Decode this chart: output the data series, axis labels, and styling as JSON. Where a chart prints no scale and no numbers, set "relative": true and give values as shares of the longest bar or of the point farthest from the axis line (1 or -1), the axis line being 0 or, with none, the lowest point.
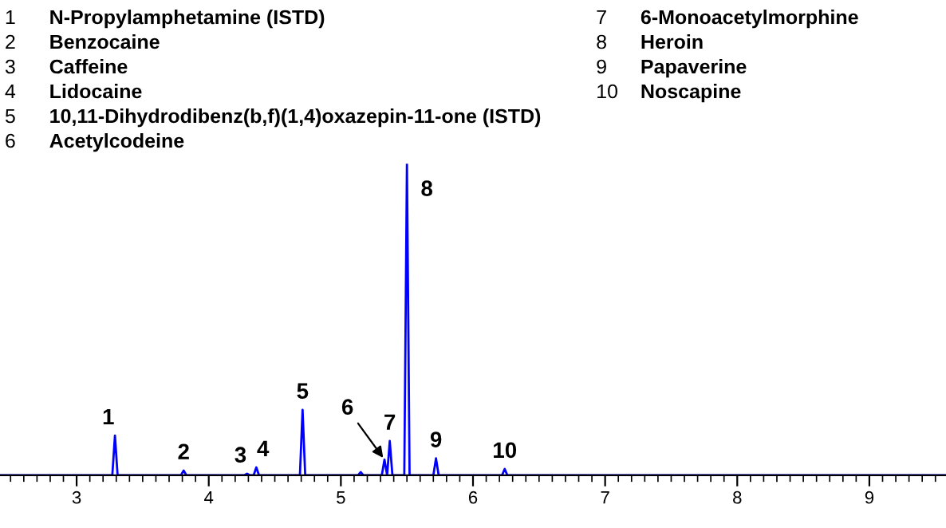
{
  "chart_data": {
    "type": "line",
    "relative": true,
    "marker": "none",
    "line_style": "solid",
    "grid": false,
    "legend": false,
    "x": [
      2.42,
      3.27,
      3.29,
      3.31,
      3.79,
      3.81,
      3.83,
      4.27,
      4.29,
      4.31,
      4.34,
      4.36,
      4.38,
      4.69,
      4.71,
      4.73,
      5.13,
      5.15,
      5.17,
      5.31,
      5.33,
      5.35,
      5.37,
      5.39,
      5.48,
      5.5,
      5.52,
      5.7,
      5.72,
      5.74,
      6.22,
      6.24,
      6.26,
      9.58
    ],
    "series": [
      {
        "color": "#0000ff",
        "values": [
          0,
          0,
          0.127,
          0,
          0,
          0.015,
          0,
          0,
          0.005,
          0,
          0,
          0.025,
          0,
          0,
          0.21,
          0,
          0,
          0.01,
          0,
          0,
          0.05,
          0,
          0.11,
          0,
          0,
          1,
          0,
          0,
          0.054,
          0,
          0,
          0.02,
          0,
          0
        ]
      }
    ],
    "xlim": [
      2.42,
      9.58
    ],
    "xticks": [
      3,
      4,
      5,
      6,
      7,
      8,
      9
    ],
    "annotations": [
      "1 N-Propylamphetamine (ISTD)",
      "2 Benzocaine",
      "3 Caffeine",
      "4 Lidocaine",
      "5 10,11-Dihydrodibenz(b,f)(1,4)oxazepin-11-one (ISTD)",
      "6 Acetylcodeine",
      "7 6-Monoacetylmorphine",
      "8 Heroin",
      "9 Papaverine",
      "10 Noscapine",
      {
        "text": "1",
        "x": 3.29,
        "y": 0.127
      },
      {
        "text": "2",
        "x": 3.81,
        "y": 0.015
      },
      {
        "text": "3",
        "x": 4.29,
        "y": 0.005
      },
      {
        "text": "4",
        "x": 4.36,
        "y": 0.025
      },
      {
        "text": "5",
        "x": 4.71,
        "y": 0.21
      },
      {
        "text": "6",
        "x": 5.33,
        "y": 0.05
      },
      {
        "text": "7",
        "x": 5.37,
        "y": 0.11
      },
      {
        "text": "8",
        "x": 5.5,
        "y": 1
      },
      {
        "text": "9",
        "x": 5.72,
        "y": 0.054
      },
      {
        "text": "10",
        "x": 6.24,
        "y": 0.02
      }
    ]
  }
}
